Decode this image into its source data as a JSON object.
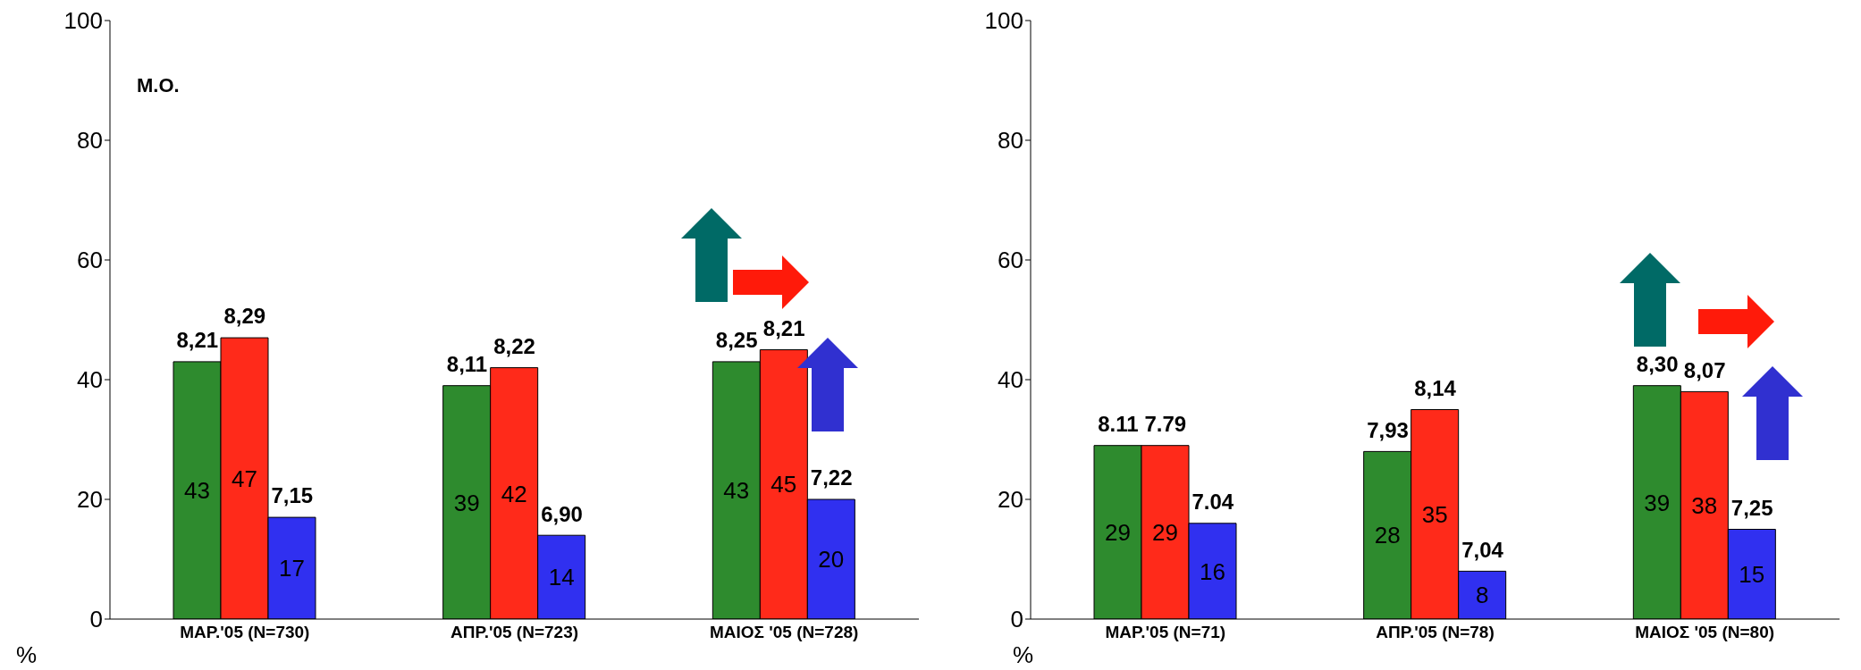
{
  "chart_data": [
    {
      "type": "bar",
      "ylabel": "%",
      "categories": [
        "ΜΑΡ.'05 (Ν=730)",
        "ΑΠΡ.'05 (Ν=723)",
        "ΜΑΙΟΣ '05 (Ν=728)"
      ],
      "series": [
        {
          "color": "#2e8b2e",
          "values": [
            43,
            39,
            43
          ]
        },
        {
          "color": "#ff2a1a",
          "values": [
            47,
            42,
            45
          ]
        },
        {
          "color": "#3030f0",
          "values": [
            17,
            14,
            20
          ]
        }
      ],
      "ylim": [
        0,
        100
      ],
      "yticks": [
        0,
        20,
        40,
        60,
        80,
        100
      ],
      "grid": false,
      "legend": false,
      "data_labels": true,
      "annotations": [
        "Μ.Ο.",
        "8,21",
        "8,29",
        "7,15",
        "8,11",
        "8,22",
        "6,90",
        "8,25",
        "8,21",
        "7,22"
      ]
    },
    {
      "type": "bar",
      "ylabel": "%",
      "categories": [
        "ΜΑΡ.'05 (Ν=71)",
        "ΑΠΡ.'05 (Ν=78)",
        "ΜΑΙΟΣ '05 (Ν=80)"
      ],
      "series": [
        {
          "color": "#2e8b2e",
          "values": [
            29,
            28,
            39
          ]
        },
        {
          "color": "#ff2a1a",
          "values": [
            29,
            35,
            38
          ]
        },
        {
          "color": "#3030f0",
          "values": [
            16,
            8,
            15
          ]
        }
      ],
      "ylim": [
        0,
        100
      ],
      "yticks": [
        0,
        20,
        40,
        60,
        80,
        100
      ],
      "grid": false,
      "legend": false,
      "data_labels": true,
      "annotations": [
        "8.11",
        "7.79",
        "7.04",
        "7,93",
        "8,14",
        "7,04",
        "8,30",
        "8,07",
        "7,25"
      ]
    }
  ]
}
